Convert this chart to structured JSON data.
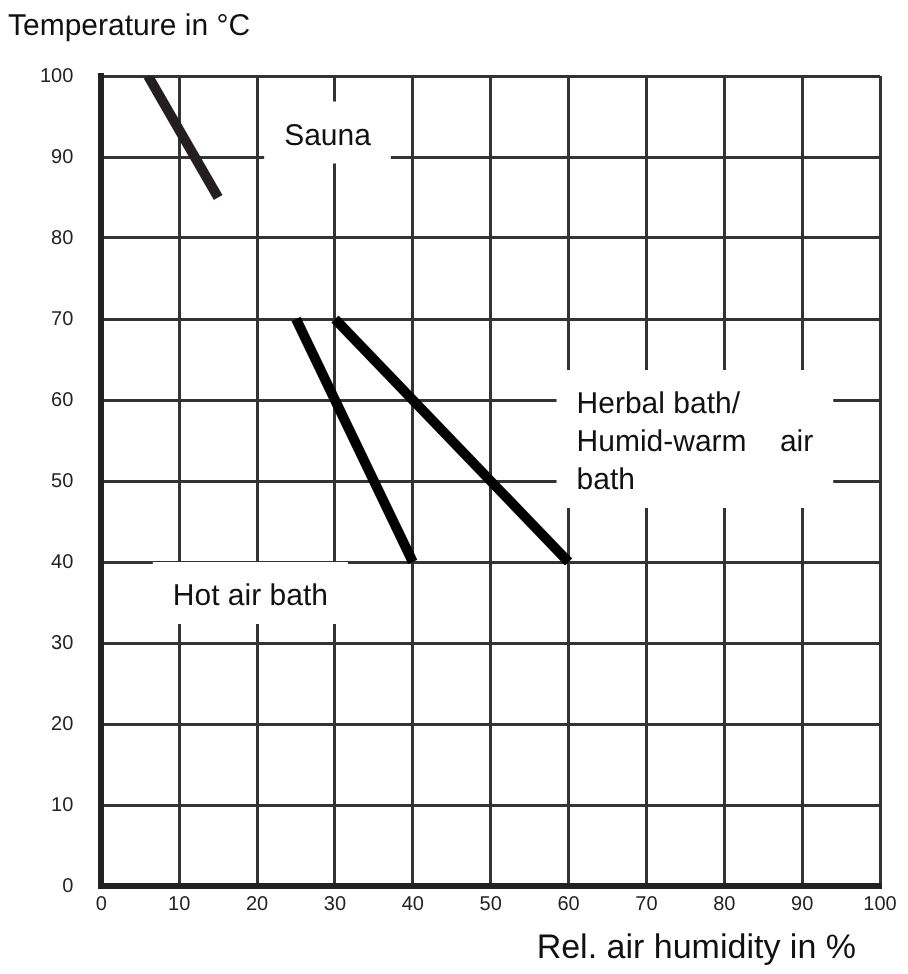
{
  "chart_data": {
    "type": "line",
    "xlabel": "Rel. air humidity in %",
    "ylabel": "Temperature in °C",
    "xlim": [
      0,
      100
    ],
    "ylim": [
      0,
      100
    ],
    "xticks": [
      0,
      10,
      20,
      30,
      40,
      50,
      60,
      70,
      80,
      90,
      100
    ],
    "yticks": [
      0,
      10,
      20,
      30,
      40,
      50,
      60,
      70,
      80,
      90,
      100
    ],
    "grid": true,
    "legend": false,
    "marker": "none",
    "line_style": "solid",
    "series": [
      {
        "name": "Sauna",
        "color": "#231f20",
        "x": [
          6,
          15
        ],
        "values": [
          100,
          85
        ]
      },
      {
        "name": "Hot air bath",
        "color": "#000000",
        "x": [
          25,
          40
        ],
        "values": [
          70,
          40
        ]
      },
      {
        "name": "Herbal bath/\nHumid-warm    air\nbath",
        "color": "#000000",
        "x": [
          30,
          60
        ],
        "values": [
          70,
          40
        ]
      }
    ]
  }
}
